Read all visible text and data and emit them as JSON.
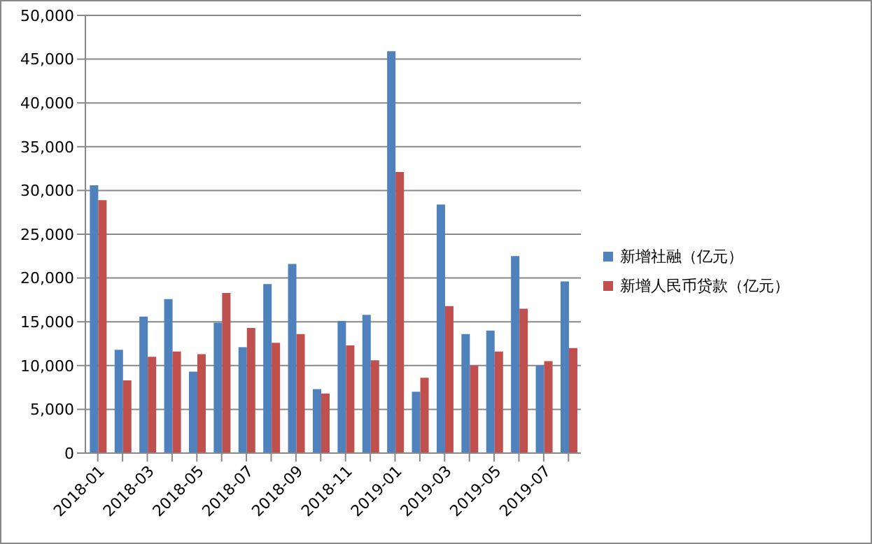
{
  "chart_data": {
    "type": "bar",
    "categories": [
      "2018-01",
      null,
      "2018-03",
      null,
      "2018-05",
      null,
      "2018-07",
      null,
      "2018-09",
      null,
      "2018-11",
      null,
      "2019-01",
      null,
      "2019-03",
      null,
      "2019-05",
      null,
      "2019-07",
      null
    ],
    "series": [
      {
        "name": "新增社融（亿元）",
        "color": "#4f81bd",
        "values": [
          30600,
          11800,
          15600,
          17600,
          9300,
          14900,
          12100,
          19300,
          21600,
          7300,
          15100,
          15800,
          45900,
          7000,
          28400,
          13600,
          14000,
          22500,
          10000,
          19600
        ]
      },
      {
        "name": "新增人民币贷款（亿元）",
        "color": "#c0504d",
        "values": [
          28900,
          8300,
          11000,
          11600,
          11300,
          18300,
          14300,
          12600,
          13600,
          6800,
          12300,
          10600,
          32100,
          8600,
          16800,
          10000,
          11600,
          16500,
          10500,
          12000
        ]
      }
    ],
    "ylim": [
      0,
      50000
    ],
    "yticks": [
      0,
      {
        "value": 5000,
        "label": "5,000"
      },
      {
        "value": 10000,
        "label": "10,000"
      },
      {
        "value": 15000,
        "label": "15,000"
      },
      {
        "value": 20000,
        "label": "20,000"
      },
      {
        "value": 25000,
        "label": "25,000"
      },
      {
        "value": 30000,
        "label": "30,000"
      },
      {
        "value": 35000,
        "label": "35,000"
      },
      {
        "value": 40000,
        "label": "40,000"
      },
      {
        "value": 45000,
        "label": "45,000"
      },
      {
        "value": 50000,
        "label": "50,000"
      }
    ],
    "grid": "y",
    "legend": "right"
  }
}
